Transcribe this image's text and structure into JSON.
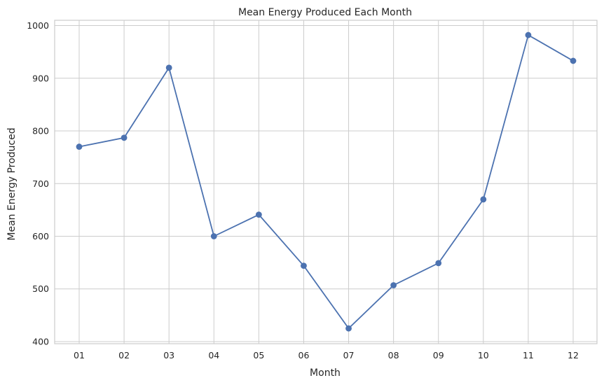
{
  "chart_data": {
    "type": "line",
    "title": "Mean Energy Produced Each Month",
    "xlabel": "Month",
    "ylabel": "Mean Energy Produced",
    "categories": [
      "01",
      "02",
      "03",
      "04",
      "05",
      "06",
      "07",
      "08",
      "09",
      "10",
      "11",
      "12"
    ],
    "series": [
      {
        "values": [
          770,
          787,
          920,
          600,
          641,
          544,
          425,
          507,
          549,
          670,
          982,
          933
        ]
      }
    ],
    "ylim": [
      396,
      1010
    ],
    "yticks": [
      400,
      500,
      600,
      700,
      800,
      900,
      1000
    ],
    "grid": true,
    "marker": "circle",
    "colors": {
      "series": "#4c72b0",
      "grid": "#cccccc",
      "text": "#262626"
    }
  }
}
